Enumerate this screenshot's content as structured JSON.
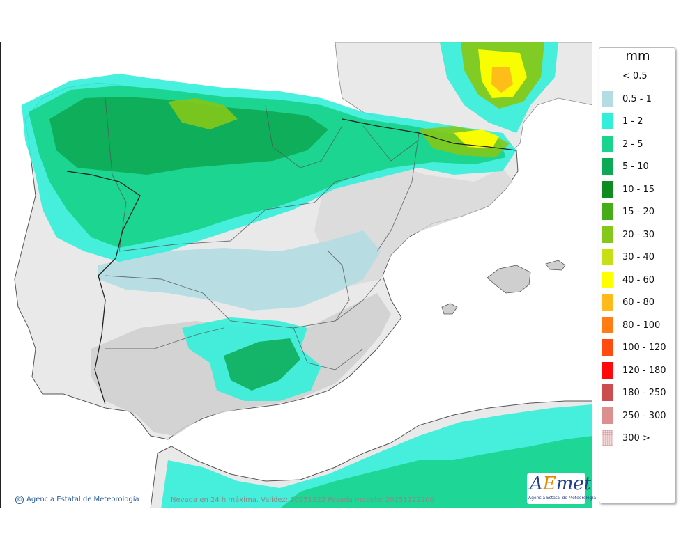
{
  "legend": {
    "unit": "mm",
    "items": [
      {
        "label": "< 0.5",
        "color": "#ffffff"
      },
      {
        "label": "0.5 - 1",
        "color": "#b3dde3"
      },
      {
        "label": "1 - 2",
        "color": "#33efd9"
      },
      {
        "label": "2 - 5",
        "color": "#1ad38d"
      },
      {
        "label": "5 - 10",
        "color": "#0daa55"
      },
      {
        "label": "10 - 15",
        "color": "#0f8c1f"
      },
      {
        "label": "15 - 20",
        "color": "#46ac17"
      },
      {
        "label": "20 - 30",
        "color": "#84c81a"
      },
      {
        "label": "30 - 40",
        "color": "#c6e014"
      },
      {
        "label": "40 - 60",
        "color": "#ffff00"
      },
      {
        "label": "60 - 80",
        "color": "#ffb91a"
      },
      {
        "label": "80 - 100",
        "color": "#ff7d12"
      },
      {
        "label": "100 - 120",
        "color": "#ff4b0e"
      },
      {
        "label": "120 - 180",
        "color": "#ff0a0a"
      },
      {
        "label": "180 - 250",
        "color": "#cc4d4f"
      },
      {
        "label": "250 - 300",
        "color": "#dd8f90"
      },
      {
        "label": "300 >",
        "color": "#f2d6d6"
      }
    ]
  },
  "footer": {
    "copyright": "Agencia Estatal de Meteorología",
    "caption": "Nevada en 24 h máxima. Validez: 20251222 Pasada modelo: 20251222200"
  },
  "logo": {
    "text_a": "A",
    "text_e": "E",
    "text_rest": "met",
    "subtitle": "Agencia Estatal de Meteorología"
  },
  "colors": {
    "land": "#e9e9e9",
    "sea": "#ffffff",
    "relief": "#bdbdbd",
    "border": "#333333",
    "region_border": "#777777"
  }
}
